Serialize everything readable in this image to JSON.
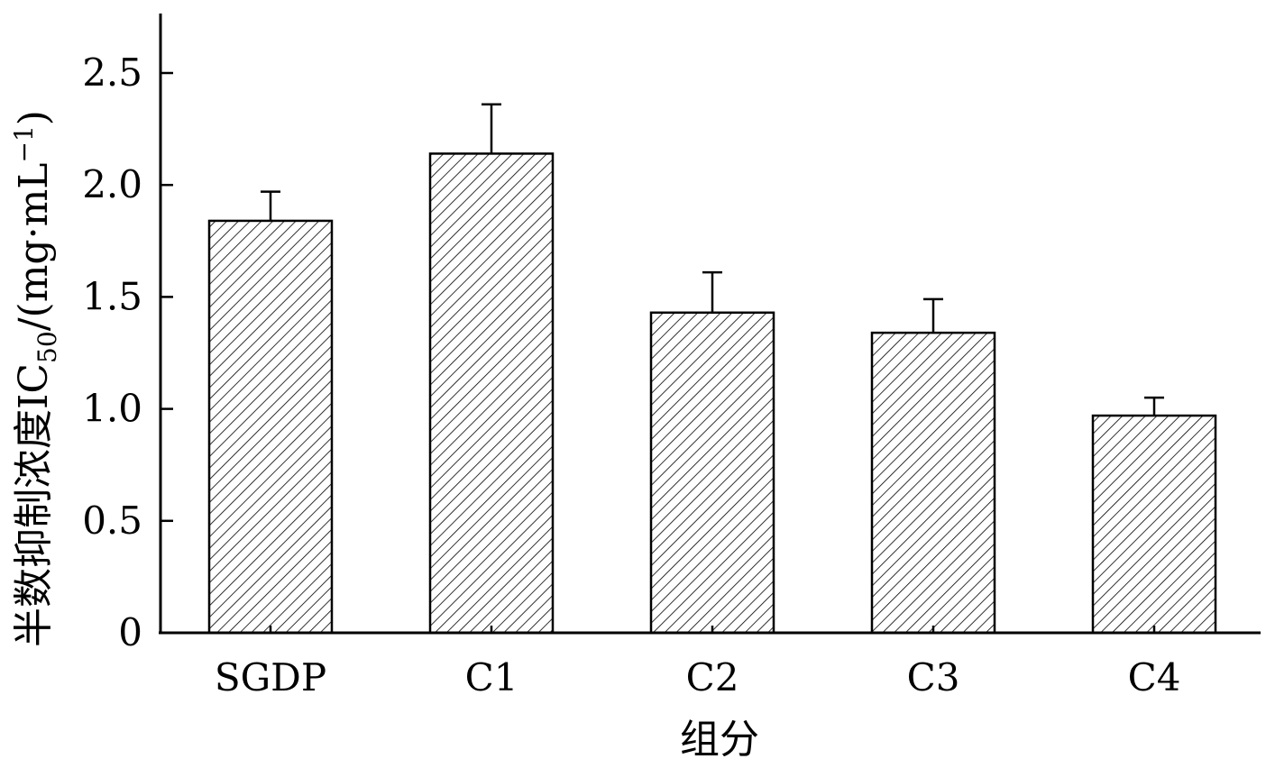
{
  "chart_data": {
    "type": "bar",
    "categories": [
      "SGDP",
      "C1",
      "C2",
      "C3",
      "C4"
    ],
    "values": [
      1.84,
      2.14,
      1.43,
      1.34,
      0.97
    ],
    "errors": [
      0.13,
      0.22,
      0.18,
      0.15,
      0.08
    ],
    "xlabel": "组分",
    "ylabel": {
      "prefix": "半数抑制浓度IC",
      "subscript": "50",
      "unit": "/(mg·mL",
      "superscript": "−1",
      "close": ")"
    },
    "yticks": [
      "0",
      "0.5",
      "1.0",
      "1.5",
      "2.0",
      "2.5"
    ],
    "ytick_values": [
      0,
      0.5,
      1.0,
      1.5,
      2.0,
      2.5
    ],
    "ylim": [
      0,
      2.75
    ],
    "bar_fill": "hatched diagonal",
    "grid": false,
    "legend": "none"
  },
  "colors": {
    "bar_stroke": "#000000",
    "hatch": "#000000",
    "background": "#ffffff"
  }
}
